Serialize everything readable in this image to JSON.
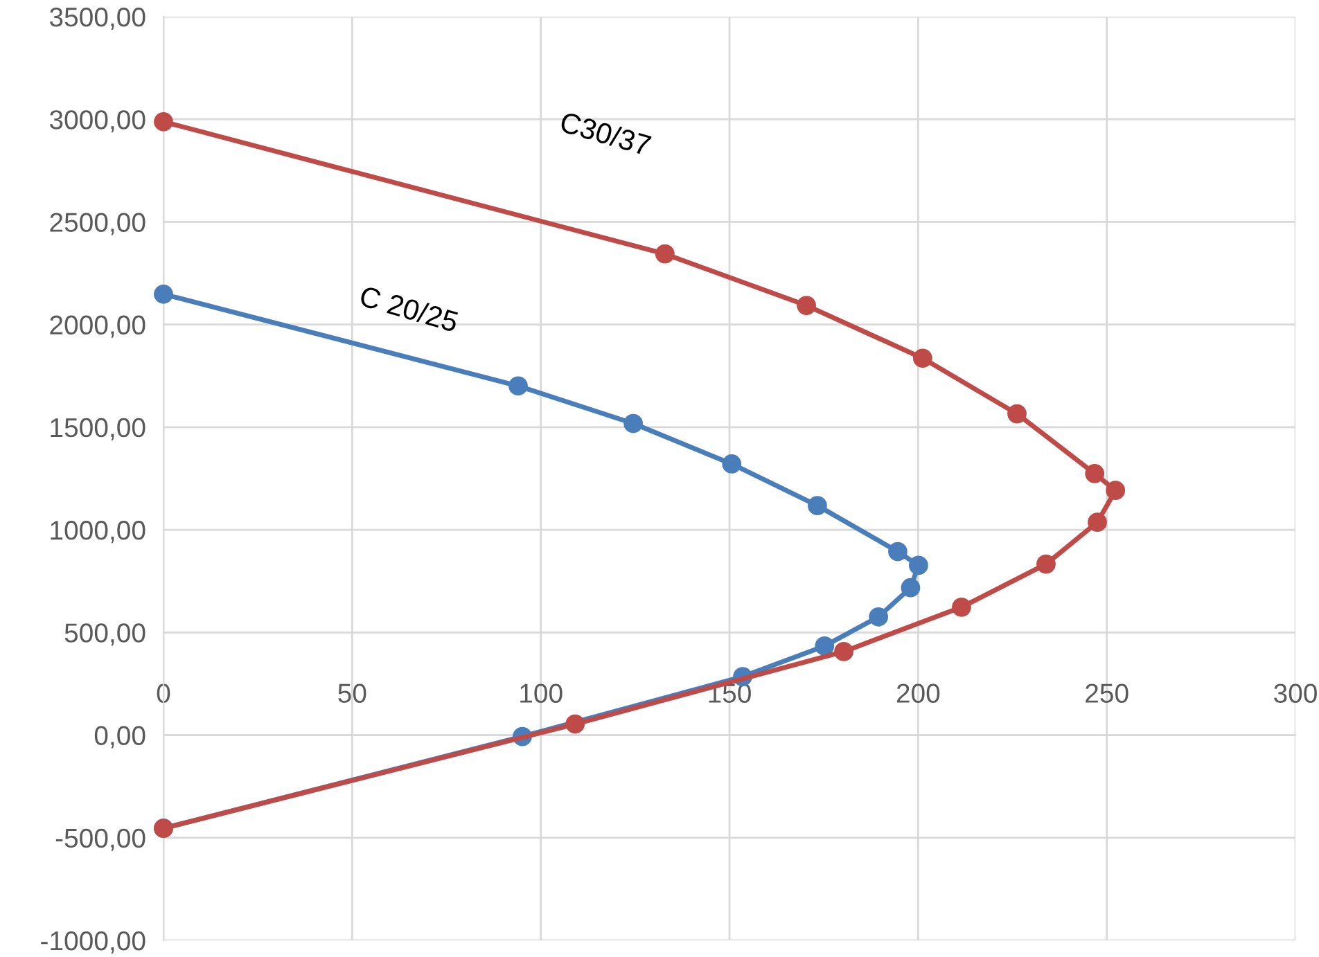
{
  "chart_data": {
    "type": "line",
    "xlim": [
      0,
      300
    ],
    "xticks": [
      0,
      50,
      100,
      150,
      200,
      250,
      300
    ],
    "ylim": [
      -1000,
      3500
    ],
    "yticks": [
      {
        "value": -1000,
        "label": "-1000,00"
      },
      {
        "value": -500,
        "label": "-500,00"
      },
      {
        "value": 0,
        "label": "0,00"
      },
      {
        "value": 500,
        "label": "500,00"
      },
      {
        "value": 1000,
        "label": "1000,00"
      },
      {
        "value": 1500,
        "label": "1500,00"
      },
      {
        "value": 2000,
        "label": "2000,00"
      },
      {
        "value": 2500,
        "label": "2500,00"
      },
      {
        "value": 3000,
        "label": "3000,00"
      },
      {
        "value": 3500,
        "label": "3500,00"
      }
    ],
    "grid": true,
    "marker": "circle",
    "line_style": "solid",
    "series": [
      {
        "name": "C 20/25",
        "color": "#4a7ebb",
        "x": [
          0,
          94,
          124.5,
          150.6,
          173.3,
          194.6,
          200.1,
          198,
          189.5,
          175.2,
          153.5,
          95.1,
          0
        ],
        "values": [
          2148,
          1701,
          1518,
          1321,
          1118,
          894,
          827,
          718,
          576,
          434,
          285,
          -7,
          -454
        ]
      },
      {
        "name": "C30/37",
        "color": "#be4b48",
        "x": [
          0,
          132.9,
          170.4,
          201.2,
          226.2,
          246.8,
          252.3,
          247.5,
          233.9,
          211.5,
          180.3,
          109.1,
          0
        ],
        "values": [
          2988,
          2344,
          2093,
          1836,
          1565,
          1274,
          1192,
          1037,
          833,
          623,
          407,
          54,
          -454
        ]
      }
    ]
  }
}
